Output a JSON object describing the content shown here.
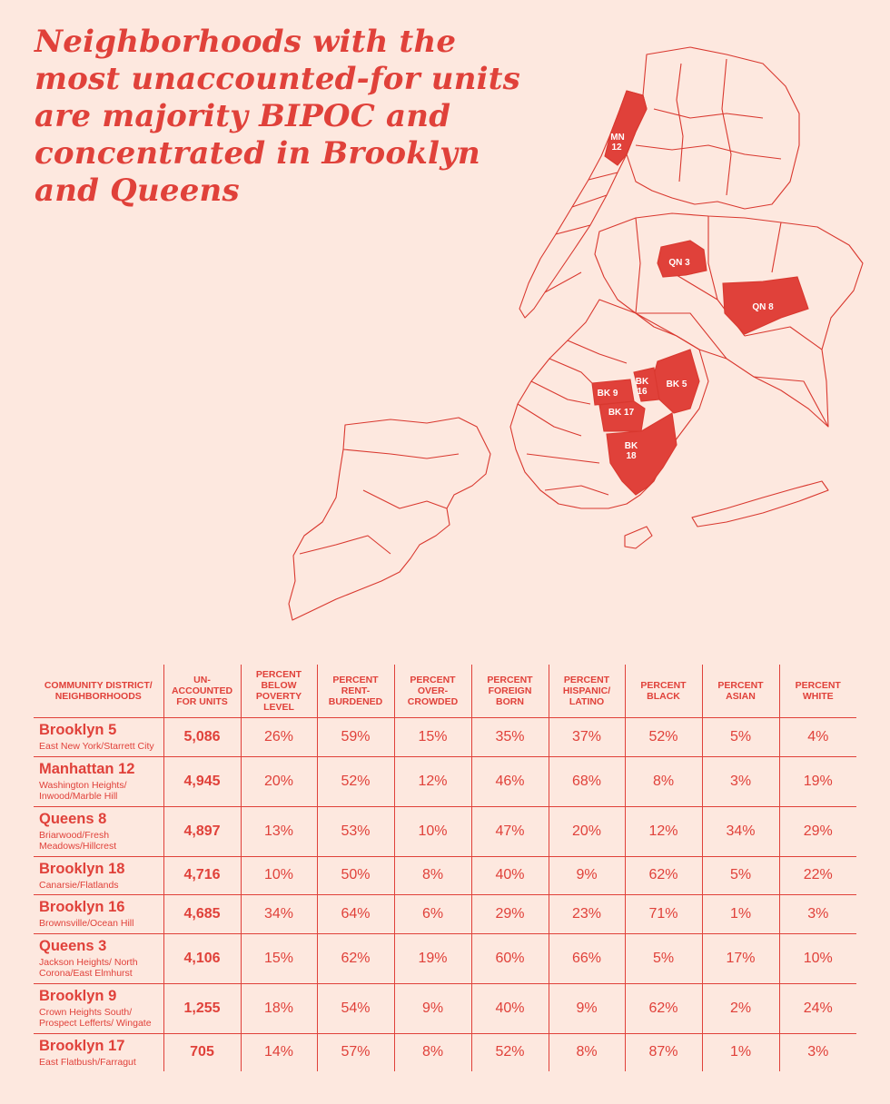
{
  "title": "Neighborhoods with the most unaccounted-for units are majority BIPOC and concentrated in Brooklyn and Queens",
  "colors": {
    "accent": "#e0413a",
    "background": "#fde8df"
  },
  "map": {
    "labels": {
      "mn12_a": "MN",
      "mn12_b": "12",
      "qn3": "QN 3",
      "qn8": "QN 8",
      "bk5": "BK 5",
      "bk9": "BK 9",
      "bk16_a": "BK",
      "bk16_b": "16",
      "bk17": "BK 17",
      "bk18_a": "BK",
      "bk18_b": "18"
    }
  },
  "table": {
    "headers": [
      "Community district/ neighborhoods",
      "Un-accounted for units",
      "Percent below poverty level",
      "Percent rent-burdened",
      "Percent over-crowded",
      "Percent foreign born",
      "Percent Hispanic/ Latino",
      "Percent Black",
      "Percent Asian",
      "Percent White"
    ],
    "rows": [
      {
        "district": "Brooklyn 5",
        "neighborhood": "East New York/Starrett City",
        "units": "5,086",
        "poverty": "26%",
        "rent_burdened": "59%",
        "overcrowded": "15%",
        "foreign_born": "35%",
        "hispanic": "37%",
        "black": "52%",
        "asian": "5%",
        "white": "4%"
      },
      {
        "district": "Manhattan 12",
        "neighborhood": "Washington Heights/ Inwood/Marble Hill",
        "units": "4,945",
        "poverty": "20%",
        "rent_burdened": "52%",
        "overcrowded": "12%",
        "foreign_born": "46%",
        "hispanic": "68%",
        "black": "8%",
        "asian": "3%",
        "white": "19%"
      },
      {
        "district": "Queens 8",
        "neighborhood": "Briarwood/Fresh Meadows/Hillcrest",
        "units": "4,897",
        "poverty": "13%",
        "rent_burdened": "53%",
        "overcrowded": "10%",
        "foreign_born": "47%",
        "hispanic": "20%",
        "black": "12%",
        "asian": "34%",
        "white": "29%"
      },
      {
        "district": "Brooklyn 18",
        "neighborhood": "Canarsie/Flatlands",
        "units": "4,716",
        "poverty": "10%",
        "rent_burdened": "50%",
        "overcrowded": "8%",
        "foreign_born": "40%",
        "hispanic": "9%",
        "black": "62%",
        "asian": "5%",
        "white": "22%"
      },
      {
        "district": "Brooklyn 16",
        "neighborhood": "Brownsville/Ocean Hill",
        "units": "4,685",
        "poverty": "34%",
        "rent_burdened": "64%",
        "overcrowded": "6%",
        "foreign_born": "29%",
        "hispanic": "23%",
        "black": "71%",
        "asian": "1%",
        "white": "3%"
      },
      {
        "district": "Queens 3",
        "neighborhood": "Jackson Heights/ North Corona/East Elmhurst",
        "units": "4,106",
        "poverty": "15%",
        "rent_burdened": "62%",
        "overcrowded": "19%",
        "foreign_born": "60%",
        "hispanic": "66%",
        "black": "5%",
        "asian": "17%",
        "white": "10%"
      },
      {
        "district": "Brooklyn 9",
        "neighborhood": "Crown Heights South/ Prospect Lefferts/ Wingate",
        "units": "1,255",
        "poverty": "18%",
        "rent_burdened": "54%",
        "overcrowded": "9%",
        "foreign_born": "40%",
        "hispanic": "9%",
        "black": "62%",
        "asian": "2%",
        "white": "24%"
      },
      {
        "district": "Brooklyn 17",
        "neighborhood": "East Flatbush/Farragut",
        "units": "705",
        "poverty": "14%",
        "rent_burdened": "57%",
        "overcrowded": "8%",
        "foreign_born": "52%",
        "hispanic": "8%",
        "black": "87%",
        "asian": "1%",
        "white": "3%"
      }
    ]
  }
}
